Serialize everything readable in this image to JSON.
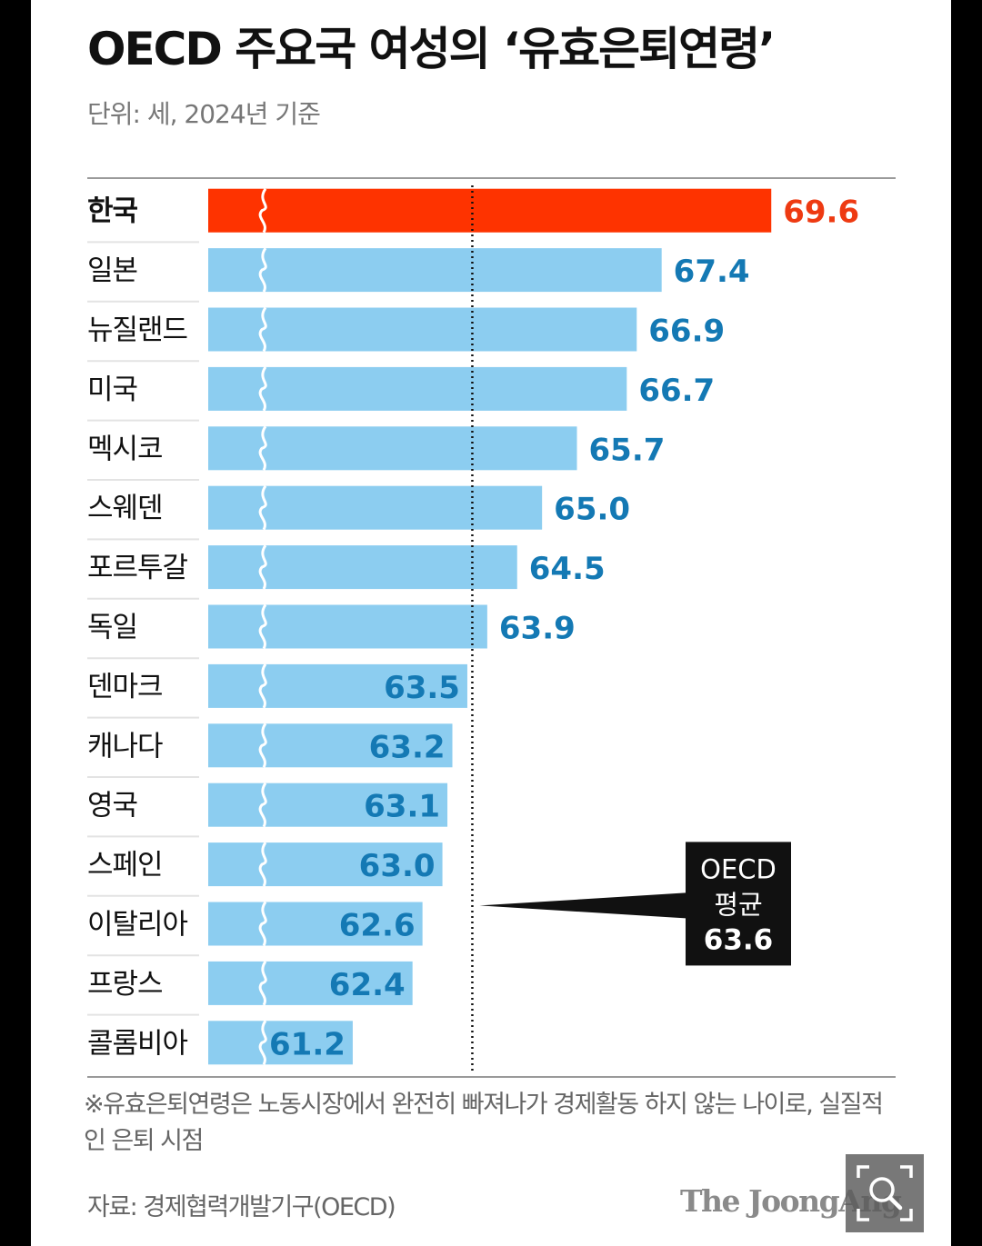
{
  "title": "OECD 주요국 여성의 ‘유효은퇴연령’",
  "subtitle": "단위: 세, 2024년 기준",
  "footnote": "※유효은퇴연령은 노동시장에서 완전히 빠져나가 경제활동 하지 않는 나이로, 실질적인 은퇴 시점",
  "source": "자료: 경제협력개발기구(OECD)",
  "publisher": "The JoongAng",
  "colors": {
    "highlight_bar": "#fe3300",
    "highlight_text": "#ee3a12",
    "bar": "#8ccdf0",
    "value_text": "#1479b4",
    "label_text": "#111111",
    "average_box": "#111111"
  },
  "icons": {
    "zoom": "zoom-magnifier-icon"
  },
  "chart_data": {
    "type": "bar",
    "orientation": "horizontal",
    "categories": [
      "한국",
      "일본",
      "뉴질랜드",
      "미국",
      "멕시코",
      "스웨덴",
      "포르투갈",
      "독일",
      "덴마크",
      "캐나다",
      "영국",
      "스페인",
      "이탈리아",
      "프랑스",
      "콜롬비아"
    ],
    "values": [
      69.6,
      67.4,
      66.9,
      66.7,
      65.7,
      65.0,
      64.5,
      63.9,
      63.5,
      63.2,
      63.1,
      63.0,
      62.6,
      62.4,
      61.2
    ],
    "value_labels": [
      "69.6",
      "67.4",
      "66.9",
      "66.7",
      "65.7",
      "65.0",
      "64.5",
      "63.9",
      "63.5",
      "63.2",
      "63.1",
      "63.0",
      "62.6",
      "62.4",
      "61.2"
    ],
    "highlight": "한국",
    "axis_break": true,
    "axis_start": 58.3,
    "grid": false,
    "reference_line": {
      "value": 63.6,
      "label_lines": [
        "OECD",
        "평균",
        "63.6"
      ]
    }
  }
}
